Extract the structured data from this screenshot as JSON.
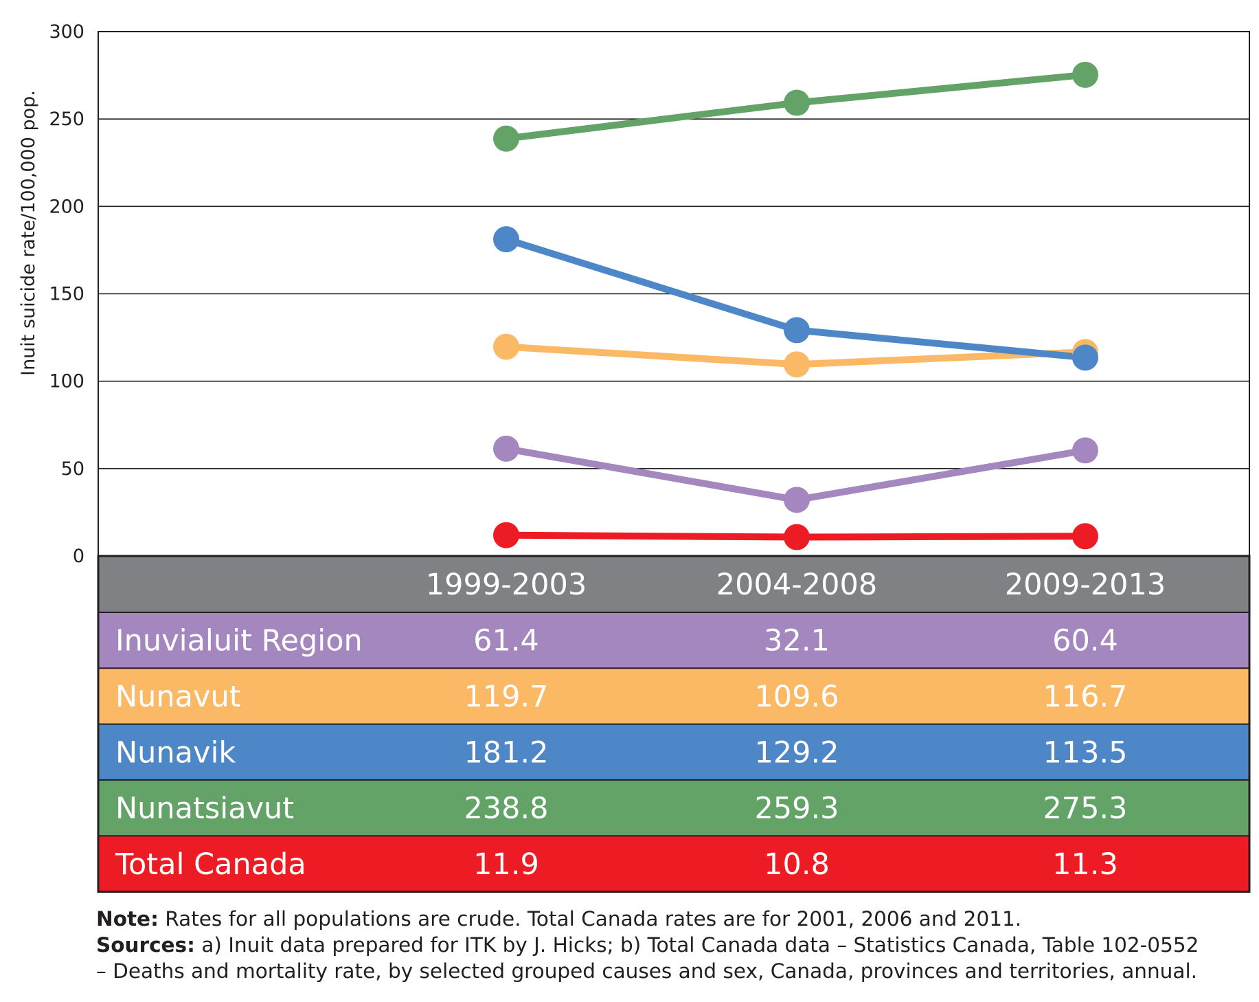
{
  "chart_data": {
    "type": "line",
    "ylabel": "Inuit suicide rate/100,000 pop.",
    "ylim": [
      0,
      300
    ],
    "yticks": [
      0,
      50,
      100,
      150,
      200,
      250,
      300
    ],
    "grid": true,
    "categories": [
      "1999-2003",
      "2004-2008",
      "2009-2013"
    ],
    "series": [
      {
        "name": "Inuvialuit Region",
        "color": "#a387be",
        "values": [
          61.4,
          32.1,
          60.4
        ],
        "labels": [
          "61.4",
          "32.1",
          "60.4"
        ]
      },
      {
        "name": "Nunavut",
        "color": "#fbb966",
        "values": [
          119.7,
          109.6,
          116.7
        ],
        "labels": [
          "119.7",
          "109.6",
          "116.7"
        ]
      },
      {
        "name": "Nunavik",
        "color": "#4e87c7",
        "values": [
          181.2,
          129.2,
          113.5
        ],
        "labels": [
          "181.2",
          "129.2",
          "113.5"
        ]
      },
      {
        "name": "Nunatsiavut",
        "color": "#63a368",
        "values": [
          238.8,
          259.3,
          275.3
        ],
        "labels": [
          "238.8",
          "259.3",
          "275.3"
        ]
      },
      {
        "name": "Total Canada",
        "color": "#ed1c24",
        "values": [
          11.9,
          10.8,
          11.3
        ],
        "labels": [
          "11.9",
          "10.8",
          "11.3"
        ]
      }
    ],
    "header_color": "#808184"
  },
  "notes": {
    "note_label": "Note:",
    "note_text": "Rates for all populations are crude. Total Canada rates are for 2001, 2006 and 2011.",
    "sources_label": "Sources:",
    "sources_text": "a) Inuit data prepared for ITK by J. Hicks; b) Total Canada data – Statistics Canada, Table 102-0552",
    "sources_text_2": "– Deaths and mortality rate, by selected grouped causes and sex, Canada, provinces and territories, annual."
  }
}
